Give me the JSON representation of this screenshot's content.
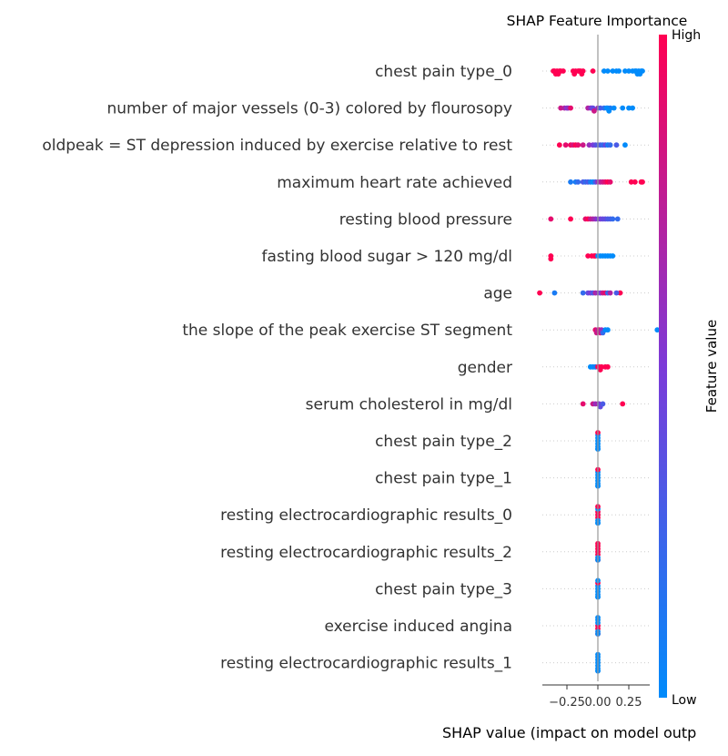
{
  "chart_data": {
    "type": "scatter",
    "title": "SHAP Feature Importance",
    "xlabel": "SHAP value (impact on model outp",
    "xlim": [
      -0.4,
      0.4
    ],
    "xticks": [
      {
        "value": -0.25,
        "label": "−0.25"
      },
      {
        "value": 0.0,
        "label": "0.00"
      },
      {
        "value": 0.25,
        "label": "0.25"
      }
    ],
    "colorbar": {
      "label": "Feature value",
      "high": "High",
      "low": "Low",
      "low_color": "#008bfb",
      "high_color": "#ff0052"
    },
    "features": [
      {
        "name": "chest pain type_0",
        "points": [
          [
            -0.35,
            1
          ],
          [
            -0.33,
            1
          ],
          [
            -0.31,
            1
          ],
          [
            -0.3,
            1
          ],
          [
            -0.28,
            1
          ],
          [
            -0.36,
            1
          ],
          [
            -0.34,
            1
          ],
          [
            -0.32,
            1
          ],
          [
            -0.2,
            1
          ],
          [
            -0.18,
            1
          ],
          [
            -0.16,
            1
          ],
          [
            -0.14,
            1
          ],
          [
            -0.12,
            1
          ],
          [
            -0.19,
            1
          ],
          [
            -0.15,
            1
          ],
          [
            -0.13,
            1
          ],
          [
            -0.04,
            1
          ],
          [
            0.05,
            0
          ],
          [
            0.08,
            0
          ],
          [
            0.12,
            0
          ],
          [
            0.15,
            0
          ],
          [
            0.22,
            0
          ],
          [
            0.28,
            0
          ],
          [
            0.31,
            0
          ],
          [
            0.33,
            0
          ],
          [
            0.35,
            0
          ],
          [
            0.36,
            0
          ],
          [
            0.3,
            0
          ],
          [
            0.32,
            0
          ],
          [
            0.34,
            0
          ],
          [
            0.17,
            0
          ],
          [
            0.25,
            0
          ]
        ]
      },
      {
        "name": "number of major vessels (0-3) colored by flourosopy",
        "points": [
          [
            -0.3,
            0.8
          ],
          [
            -0.27,
            0.7
          ],
          [
            -0.25,
            0.5
          ],
          [
            -0.24,
            0.6
          ],
          [
            -0.22,
            0.9
          ],
          [
            -0.08,
            0.7
          ],
          [
            -0.06,
            0.6
          ],
          [
            -0.05,
            0.5
          ],
          [
            -0.04,
            0.4
          ],
          [
            -0.03,
            0.8
          ],
          [
            0.0,
            0.6
          ],
          [
            0.02,
            0.3
          ],
          [
            0.05,
            0.2
          ],
          [
            0.08,
            0.1
          ],
          [
            0.1,
            0.1
          ],
          [
            0.13,
            0.0
          ],
          [
            0.2,
            0.0
          ],
          [
            0.25,
            0.0
          ],
          [
            0.28,
            0.0
          ],
          [
            0.07,
            0.0
          ],
          [
            0.09,
            0.0
          ]
        ]
      },
      {
        "name": "oldpeak = ST depression induced by exercise relative to rest",
        "points": [
          [
            -0.31,
            1.0
          ],
          [
            -0.26,
            0.9
          ],
          [
            -0.22,
            0.95
          ],
          [
            -0.2,
            0.85
          ],
          [
            -0.18,
            1.0
          ],
          [
            -0.16,
            0.9
          ],
          [
            -0.12,
            0.8
          ],
          [
            -0.07,
            0.6
          ],
          [
            -0.04,
            0.5
          ],
          [
            -0.02,
            0.4
          ],
          [
            0.0,
            0.3
          ],
          [
            0.02,
            0.3
          ],
          [
            0.04,
            0.2
          ],
          [
            0.06,
            0.4
          ],
          [
            0.08,
            0.1
          ],
          [
            0.1,
            0.2
          ],
          [
            0.15,
            0.3
          ],
          [
            0.22,
            0.0
          ]
        ]
      },
      {
        "name": "maximum heart rate achieved",
        "points": [
          [
            -0.22,
            0.1
          ],
          [
            -0.18,
            0.1
          ],
          [
            -0.16,
            0.2
          ],
          [
            -0.12,
            0.3
          ],
          [
            -0.1,
            0.2
          ],
          [
            -0.08,
            0.3
          ],
          [
            -0.06,
            0.1
          ],
          [
            -0.04,
            0.0
          ],
          [
            -0.02,
            0.3
          ],
          [
            0.0,
            0.6
          ],
          [
            0.02,
            0.7
          ],
          [
            0.04,
            0.8
          ],
          [
            0.06,
            0.9
          ],
          [
            0.08,
            1.0
          ],
          [
            0.1,
            0.9
          ],
          [
            0.27,
            1.0
          ],
          [
            0.3,
            1.0
          ],
          [
            0.35,
            1.0
          ],
          [
            0.36,
            1.0
          ]
        ]
      },
      {
        "name": "resting blood pressure",
        "points": [
          [
            -0.38,
            0.9
          ],
          [
            -0.22,
            1.0
          ],
          [
            -0.1,
            0.9
          ],
          [
            -0.08,
            1.0
          ],
          [
            -0.06,
            0.8
          ],
          [
            -0.04,
            0.7
          ],
          [
            -0.02,
            0.6
          ],
          [
            0.0,
            0.5
          ],
          [
            0.02,
            0.5
          ],
          [
            0.04,
            0.4
          ],
          [
            0.06,
            0.4
          ],
          [
            0.08,
            0.3
          ],
          [
            0.1,
            0.3
          ],
          [
            0.12,
            0.2
          ],
          [
            0.16,
            0.2
          ]
        ]
      },
      {
        "name": "fasting blood sugar > 120 mg/dl",
        "points": [
          [
            -0.38,
            1.0
          ],
          [
            -0.38,
            1.0
          ],
          [
            -0.08,
            1.0
          ],
          [
            -0.05,
            1.0
          ],
          [
            -0.03,
            1.0
          ],
          [
            -0.02,
            1.0
          ],
          [
            0.0,
            0.0
          ],
          [
            0.02,
            0.0
          ],
          [
            0.04,
            0.0
          ],
          [
            0.06,
            0.0
          ],
          [
            0.08,
            0.0
          ],
          [
            0.1,
            0.0
          ],
          [
            0.12,
            0.0
          ]
        ]
      },
      {
        "name": "age",
        "points": [
          [
            -0.47,
            1.0
          ],
          [
            -0.35,
            0.1
          ],
          [
            -0.12,
            0.2
          ],
          [
            -0.08,
            0.4
          ],
          [
            -0.06,
            0.5
          ],
          [
            -0.04,
            0.3
          ],
          [
            -0.02,
            0.7
          ],
          [
            0.0,
            0.6
          ],
          [
            0.02,
            0.5
          ],
          [
            0.04,
            0.8
          ],
          [
            0.06,
            0.9
          ],
          [
            0.08,
            0.2
          ],
          [
            0.1,
            0.7
          ],
          [
            0.18,
            1.0
          ],
          [
            0.15,
            0.3
          ]
        ]
      },
      {
        "name": "the slope of the peak exercise ST segment",
        "points": [
          [
            -0.02,
            0.9
          ],
          [
            -0.01,
            0.8
          ],
          [
            0.0,
            0.7
          ],
          [
            0.01,
            0.9
          ],
          [
            0.02,
            0.8
          ],
          [
            0.03,
            0.6
          ],
          [
            0.04,
            0.2
          ],
          [
            0.06,
            0.0
          ],
          [
            0.08,
            0.0
          ],
          [
            0.48,
            0.0
          ]
        ]
      },
      {
        "name": "gender",
        "points": [
          [
            -0.06,
            0.0
          ],
          [
            -0.04,
            0.0
          ],
          [
            -0.02,
            0.1
          ],
          [
            0.0,
            1.0
          ],
          [
            0.01,
            1.0
          ],
          [
            0.02,
            1.0
          ],
          [
            0.03,
            1.0
          ],
          [
            0.06,
            1.0
          ],
          [
            0.08,
            1.0
          ]
        ]
      },
      {
        "name": "serum cholesterol in mg/dl",
        "points": [
          [
            -0.12,
            0.9
          ],
          [
            -0.04,
            0.8
          ],
          [
            -0.02,
            0.6
          ],
          [
            0.0,
            0.7
          ],
          [
            0.01,
            0.5
          ],
          [
            0.02,
            0.4
          ],
          [
            0.04,
            0.3
          ],
          [
            0.2,
            1.0
          ]
        ]
      },
      {
        "name": "chest pain type_2",
        "points": [
          [
            0.0,
            0.0
          ],
          [
            0.0,
            0.0
          ],
          [
            0.0,
            0.0
          ],
          [
            0.0,
            0.0
          ],
          [
            0.0,
            0.0
          ],
          [
            0.0,
            0.0
          ],
          [
            0.0,
            1.0
          ],
          [
            0.0,
            0.0
          ]
        ]
      },
      {
        "name": "chest pain type_1",
        "points": [
          [
            0.0,
            0.0
          ],
          [
            0.0,
            0.0
          ],
          [
            0.0,
            0.0
          ],
          [
            0.0,
            0.0
          ],
          [
            0.0,
            0.0
          ],
          [
            0.0,
            0.0
          ],
          [
            0.0,
            1.0
          ],
          [
            0.0,
            0.0
          ]
        ]
      },
      {
        "name": "resting electrocardiographic results_0",
        "points": [
          [
            0.0,
            1.0
          ],
          [
            0.0,
            1.0
          ],
          [
            0.0,
            1.0
          ],
          [
            0.0,
            0.0
          ],
          [
            0.0,
            0.0
          ],
          [
            0.0,
            0.0
          ],
          [
            0.0,
            1.0
          ],
          [
            0.0,
            0.0
          ]
        ]
      },
      {
        "name": "resting electrocardiographic results_2",
        "points": [
          [
            0.0,
            1.0
          ],
          [
            0.0,
            1.0
          ],
          [
            0.0,
            1.0
          ],
          [
            0.0,
            0.0
          ],
          [
            0.0,
            1.0
          ],
          [
            0.0,
            1.0
          ],
          [
            0.0,
            1.0
          ],
          [
            0.0,
            0.0
          ]
        ]
      },
      {
        "name": "chest pain type_3",
        "points": [
          [
            0.0,
            0.0
          ],
          [
            0.0,
            0.0
          ],
          [
            0.0,
            0.0
          ],
          [
            0.0,
            0.0
          ],
          [
            0.0,
            1.0
          ],
          [
            0.0,
            0.0
          ],
          [
            0.0,
            0.0
          ],
          [
            0.0,
            0.0
          ]
        ]
      },
      {
        "name": "exercise induced angina",
        "points": [
          [
            0.0,
            1.0
          ],
          [
            0.0,
            1.0
          ],
          [
            0.0,
            0.0
          ],
          [
            0.0,
            0.0
          ],
          [
            0.0,
            0.0
          ],
          [
            0.0,
            1.0
          ],
          [
            0.0,
            0.0
          ],
          [
            0.0,
            0.0
          ]
        ]
      },
      {
        "name": "resting electrocardiographic results_1",
        "points": [
          [
            0.0,
            0.0
          ],
          [
            0.0,
            0.0
          ],
          [
            0.0,
            0.0
          ],
          [
            0.0,
            0.0
          ],
          [
            0.0,
            0.0
          ],
          [
            0.0,
            0.0
          ],
          [
            0.0,
            0.0
          ],
          [
            0.0,
            0.0
          ]
        ]
      }
    ]
  }
}
